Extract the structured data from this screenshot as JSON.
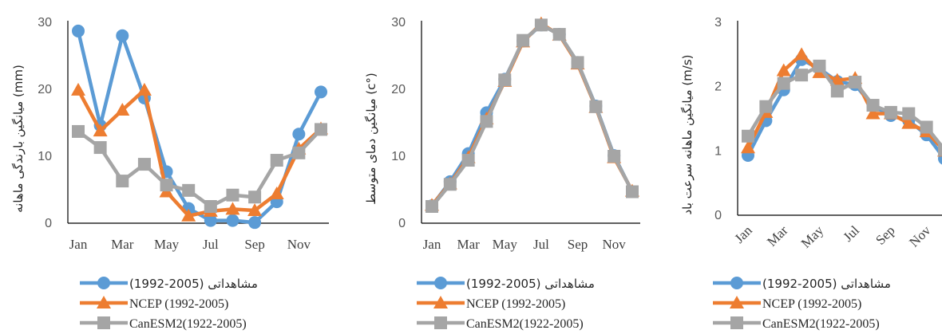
{
  "colors": {
    "observed": "#5B9BD5",
    "ncep": "#ED7D31",
    "canesm2": "#A5A5A5",
    "axis": "#000000",
    "tick_text": "#595959"
  },
  "chart_data": [
    {
      "type": "line",
      "ylabel": "میانگین بارندگی ماهانه (mm)",
      "ylim": [
        0,
        30
      ],
      "yticks": [
        0,
        10,
        20,
        30
      ],
      "x": [
        "Jan",
        "Feb",
        "Mar",
        "Apr",
        "May",
        "Jun",
        "Jul",
        "Aug",
        "Sep",
        "Oct",
        "Nov",
        "Dec"
      ],
      "x_tick_labels": [
        "Jan",
        "Mar",
        "May",
        "Jul",
        "Sep",
        "Nov"
      ],
      "series": [
        {
          "name": "مشاهداتی (2005-1992)",
          "marker": "circle",
          "values": [
            28.7,
            14.6,
            28.0,
            18.7,
            7.7,
            2.2,
            0.4,
            0.4,
            0.1,
            3.2,
            13.3,
            19.6
          ]
        },
        {
          "name": "NCEP (1992-2005)",
          "marker": "triangle",
          "values": [
            19.9,
            13.8,
            16.9,
            19.9,
            4.7,
            1.1,
            1.8,
            2.1,
            1.9,
            4.4,
            11.1,
            14.1
          ]
        },
        {
          "name": "CanESM2(1922-2005)",
          "marker": "square",
          "values": [
            13.7,
            11.3,
            6.3,
            8.8,
            5.7,
            4.9,
            2.5,
            4.2,
            3.9,
            9.4,
            10.5,
            14.0
          ]
        }
      ],
      "legend": [
        "مشاهداتی (2005-1992)",
        "NCEP (1992-2005)",
        "CanESM2(1922-2005)"
      ],
      "legend_position": "bottom"
    },
    {
      "type": "line",
      "ylabel": "میانگین دمای متوسط (c°)",
      "ylim": [
        0,
        30
      ],
      "yticks": [
        0,
        10,
        20,
        30
      ],
      "x": [
        "Jan",
        "Feb",
        "Mar",
        "Apr",
        "May",
        "Jun",
        "Jul",
        "Aug",
        "Sep",
        "Oct",
        "Nov",
        "Dec"
      ],
      "x_tick_labels": [
        "Jan",
        "Mar",
        "May",
        "Jul",
        "Sep",
        "Nov"
      ],
      "series": [
        {
          "name": "مشاهداتی (2005-1992)",
          "marker": "circle",
          "values": [
            2.6,
            6.2,
            10.4,
            16.5,
            21.5,
            27.2,
            29.6,
            28.2,
            24.0,
            17.5,
            10.1,
            4.7
          ]
        },
        {
          "name": "NCEP (1992-2005)",
          "marker": "triangle",
          "values": [
            2.7,
            5.9,
            9.8,
            15.6,
            21.2,
            27.1,
            29.8,
            28.1,
            23.8,
            17.3,
            9.8,
            4.8
          ]
        },
        {
          "name": "CanESM2(1922-2005)",
          "marker": "square",
          "values": [
            2.5,
            5.8,
            9.4,
            15.2,
            21.4,
            27.3,
            29.6,
            28.2,
            24.0,
            17.4,
            10.0,
            4.7
          ]
        }
      ],
      "legend": [
        "مشاهداتی (2005-1992)",
        "NCEP (1992-2005)",
        "CanESM2(1922-2005)"
      ],
      "legend_position": "bottom"
    },
    {
      "type": "line",
      "ylabel": "میانگین ماهانه سرعت باد (m/s)",
      "ylim": [
        0,
        3
      ],
      "yticks": [
        0,
        1,
        2,
        3
      ],
      "x": [
        "Jan",
        "Feb",
        "Mar",
        "Apr",
        "May",
        "Jun",
        "Jul",
        "Aug",
        "Sep",
        "Oct",
        "Nov",
        "Dec"
      ],
      "x_tick_labels": [
        "Jan",
        "Mar",
        "May",
        "Jul",
        "Sep",
        "Nov"
      ],
      "series": [
        {
          "name": "مشاهداتی (2005-1992)",
          "marker": "circle",
          "values": [
            0.93,
            1.47,
            1.95,
            2.42,
            2.28,
            2.08,
            2.03,
            1.7,
            1.55,
            1.47,
            1.25,
            0.88
          ]
        },
        {
          "name": "NCEP (1992-2005)",
          "marker": "triangle",
          "values": [
            1.05,
            1.6,
            2.25,
            2.5,
            2.22,
            2.1,
            2.13,
            1.58,
            1.58,
            1.43,
            1.3,
            1.0
          ]
        },
        {
          "name": "CanESM2(1922-2005)",
          "marker": "square",
          "values": [
            1.23,
            1.69,
            2.05,
            2.18,
            2.32,
            1.93,
            2.07,
            1.71,
            1.6,
            1.58,
            1.37,
            1.02
          ]
        }
      ],
      "legend": [
        "مشاهداتی (2005-1992)",
        "NCEP (1992-2005)",
        "CanESM2(1922-2005)"
      ],
      "legend_position": "bottom"
    }
  ]
}
